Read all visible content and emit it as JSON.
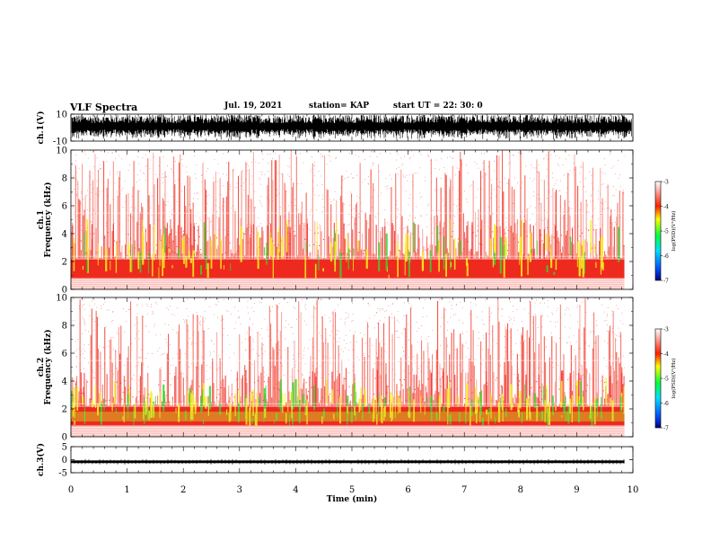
{
  "header": {
    "title": "VLF Spectra",
    "date": "Jul. 19, 2021",
    "station": "station= KAP",
    "start": "start UT =  22: 30: 0"
  },
  "chart_data": [
    {
      "type": "line",
      "name": "ch1-waveform",
      "ylabel": "ch.1(V)",
      "ylim": [
        -10,
        10
      ],
      "yticks": [
        "10",
        "-10"
      ],
      "xlim": [
        0,
        10
      ],
      "amplitude_fraction": 0.95,
      "color": "#000000"
    },
    {
      "type": "heatmap",
      "name": "ch1-spectrogram",
      "ylabel": "ch.1\nFrequency (kHz)",
      "ylim": [
        0,
        10
      ],
      "yticks": [
        "0",
        "2",
        "4",
        "6",
        "8",
        "10"
      ],
      "xlim": [
        0,
        10
      ],
      "data_end_min": 9.85,
      "colorbar": {
        "label": "log(PSD)(V²/Hz)",
        "range": [
          -7,
          -3
        ],
        "ticks": [
          "-3",
          "-4",
          "-5",
          "-6",
          "-7"
        ]
      }
    },
    {
      "type": "heatmap",
      "name": "ch2-spectrogram",
      "ylabel": "ch.2\nFrequency (kHz)",
      "ylim": [
        0,
        10
      ],
      "yticks": [
        "0",
        "2",
        "4",
        "6",
        "8",
        "10"
      ],
      "xlim": [
        0,
        10
      ],
      "data_end_min": 9.85,
      "colorbar": {
        "label": "log(PSD)(V²/Hz)",
        "range": [
          -7,
          -3
        ],
        "ticks": [
          "-3",
          "-4",
          "-5",
          "-6",
          "-7"
        ]
      }
    },
    {
      "type": "line",
      "name": "ch3-waveform",
      "ylabel": "ch.3(V)",
      "ylim": [
        -5,
        5
      ],
      "yticks": [
        "5",
        "0",
        "-5"
      ],
      "xlim": [
        0,
        10
      ],
      "band": [
        -1.3,
        -0.3
      ],
      "color": "#000000"
    }
  ],
  "xaxis": {
    "label": "Time (min)",
    "ticks": [
      "0",
      "1",
      "2",
      "3",
      "4",
      "5",
      "6",
      "7",
      "8",
      "9",
      "10"
    ]
  },
  "colors": {
    "background": "#ffffff",
    "spectrum_low": "#f02020",
    "spectrum_mid": "#f0f020",
    "spectrum_high": "#20c020"
  }
}
